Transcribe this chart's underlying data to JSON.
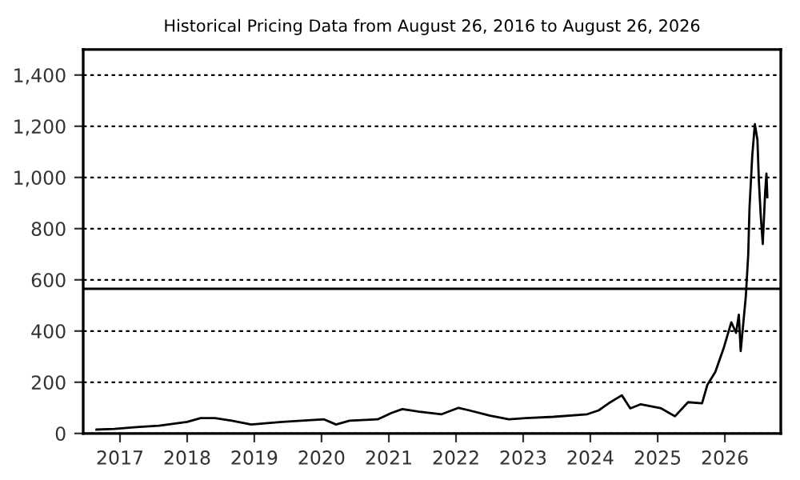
{
  "chart_data": {
    "type": "line",
    "title": "Historical Pricing Data from August 26, 2016 to August 26, 2026",
    "x": [
      "2016-08-26",
      "2016-12-01",
      "2017-04-01",
      "2017-08-01",
      "2018-01-01",
      "2018-03-15",
      "2018-06-01",
      "2018-09-01",
      "2018-12-15",
      "2019-06-01",
      "2020-01-15",
      "2020-03-20",
      "2020-06-01",
      "2020-11-01",
      "2021-01-15",
      "2021-03-15",
      "2021-06-15",
      "2021-10-15",
      "2022-01-15",
      "2022-03-15",
      "2022-07-01",
      "2022-10-15",
      "2023-01-15",
      "2023-06-15",
      "2023-12-15",
      "2024-02-15",
      "2024-04-10",
      "2024-06-20",
      "2024-08-05",
      "2024-10-01",
      "2025-01-20",
      "2025-04-05",
      "2025-06-15",
      "2025-08-30",
      "2025-09-28",
      "2025-11-10",
      "2025-12-25",
      "2026-02-05",
      "2026-03-03",
      "2026-03-18",
      "2026-03-28",
      "2026-04-25",
      "2026-05-08",
      "2026-05-15",
      "2026-05-30",
      "2026-06-13",
      "2026-06-27",
      "2026-07-05",
      "2026-07-15",
      "2026-07-26",
      "2026-08-08",
      "2026-08-15",
      "2026-08-20"
    ],
    "series": [
      {
        "color": "#000000",
        "values": [
          15,
          18,
          25,
          30,
          45,
          60,
          60,
          50,
          35,
          45,
          55,
          35,
          50,
          55,
          80,
          95,
          85,
          75,
          100,
          90,
          70,
          55,
          60,
          65,
          75,
          90,
          118,
          149,
          98,
          114,
          98,
          67,
          122,
          118,
          190,
          240,
          332,
          434,
          393,
          464,
          322,
          536,
          699,
          882,
          1086,
          1208,
          1147,
          984,
          851,
          740,
          943,
          1015,
          923
        ]
      }
    ],
    "xlim": [
      "2016-06-15",
      "2026-11-01"
    ],
    "xticks": [
      {
        "value": "2017-01-01",
        "label": "2017"
      },
      {
        "value": "2018-01-01",
        "label": "2018"
      },
      {
        "value": "2019-01-01",
        "label": "2019"
      },
      {
        "value": "2020-01-01",
        "label": "2020"
      },
      {
        "value": "2021-01-01",
        "label": "2021"
      },
      {
        "value": "2022-01-01",
        "label": "2022"
      },
      {
        "value": "2023-01-01",
        "label": "2023"
      },
      {
        "value": "2024-01-01",
        "label": "2024"
      },
      {
        "value": "2025-01-01",
        "label": "2025"
      },
      {
        "value": "2026-01-01",
        "label": "2026"
      }
    ],
    "ylim": [
      0,
      1500
    ],
    "yticks": [
      0,
      {
        "value": 200,
        "label": "200"
      },
      {
        "value": 400,
        "label": "400"
      },
      {
        "value": 600,
        "label": "600"
      },
      {
        "value": 800,
        "label": "800"
      },
      {
        "value": 1000,
        "label": "1,000"
      },
      {
        "value": 1200,
        "label": "1,200"
      },
      {
        "value": 1400,
        "label": "1,400"
      }
    ],
    "grid": "y",
    "line_style": "solid",
    "marker": "none",
    "legend": false,
    "ref_lines": [
      {
        "axis": "y",
        "value": 565,
        "color": "#000000",
        "line_style": "solid"
      }
    ]
  }
}
